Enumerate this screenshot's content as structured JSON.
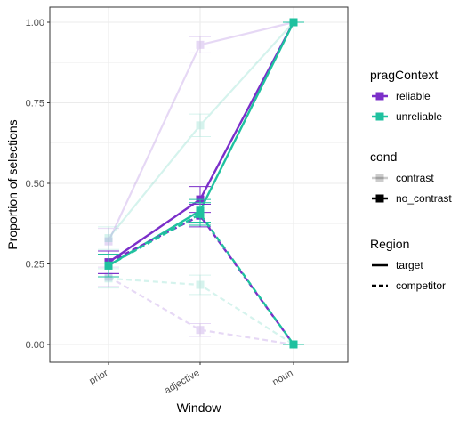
{
  "chart_data": {
    "type": "line",
    "xlabel": "Window",
    "ylabel": "Proportion of selections",
    "categories": [
      "prior",
      "adjective",
      "noun"
    ],
    "ylim": [
      0,
      1
    ],
    "yticks": [
      0.0,
      0.25,
      0.5,
      0.75,
      1.0
    ],
    "ytick_labels": [
      "0.00",
      "0.25",
      "0.50",
      "0.75",
      "1.00"
    ],
    "grid": true,
    "legend_position": "right",
    "colors": {
      "reliable": "#7b2fc9",
      "unreliable": "#1fc19f"
    },
    "series": [
      {
        "pragContext": "reliable",
        "cond": "contrast",
        "Region": "target",
        "values": [
          0.32,
          0.93,
          1.0
        ],
        "error": [
          0.04,
          0.025,
          0.0
        ]
      },
      {
        "pragContext": "unreliable",
        "cond": "contrast",
        "Region": "target",
        "values": [
          0.33,
          0.68,
          1.0
        ],
        "error": [
          0.035,
          0.035,
          0.0
        ]
      },
      {
        "pragContext": "reliable",
        "cond": "contrast",
        "Region": "competitor",
        "values": [
          0.21,
          0.045,
          0.0
        ],
        "error": [
          0.03,
          0.02,
          0.0
        ]
      },
      {
        "pragContext": "unreliable",
        "cond": "contrast",
        "Region": "competitor",
        "values": [
          0.205,
          0.185,
          0.0
        ],
        "error": [
          0.03,
          0.03,
          0.0
        ]
      },
      {
        "pragContext": "reliable",
        "cond": "no_contrast",
        "Region": "target",
        "values": [
          0.255,
          0.45,
          1.0
        ],
        "error": [
          0.035,
          0.04,
          0.0
        ]
      },
      {
        "pragContext": "unreliable",
        "cond": "no_contrast",
        "Region": "target",
        "values": [
          0.245,
          0.415,
          1.0
        ],
        "error": [
          0.035,
          0.035,
          0.0
        ]
      },
      {
        "pragContext": "reliable",
        "cond": "no_contrast",
        "Region": "competitor",
        "values": [
          0.255,
          0.4,
          0.0
        ],
        "error": [
          0.035,
          0.035,
          0.0
        ]
      },
      {
        "pragContext": "unreliable",
        "cond": "no_contrast",
        "Region": "competitor",
        "values": [
          0.245,
          0.405,
          0.0
        ],
        "error": [
          0.035,
          0.035,
          0.0
        ]
      }
    ],
    "legend": [
      {
        "title": "pragContext",
        "entries": [
          {
            "label": "reliable",
            "key": "reliable"
          },
          {
            "label": "unreliable",
            "key": "unreliable"
          }
        ]
      },
      {
        "title": "cond",
        "entries": [
          {
            "label": "contrast",
            "key": "contrast"
          },
          {
            "label": "no_contrast",
            "key": "no_contrast"
          }
        ]
      },
      {
        "title": "Region",
        "entries": [
          {
            "label": "target",
            "key": "target"
          },
          {
            "label": "competitor",
            "key": "competitor"
          }
        ]
      }
    ]
  }
}
